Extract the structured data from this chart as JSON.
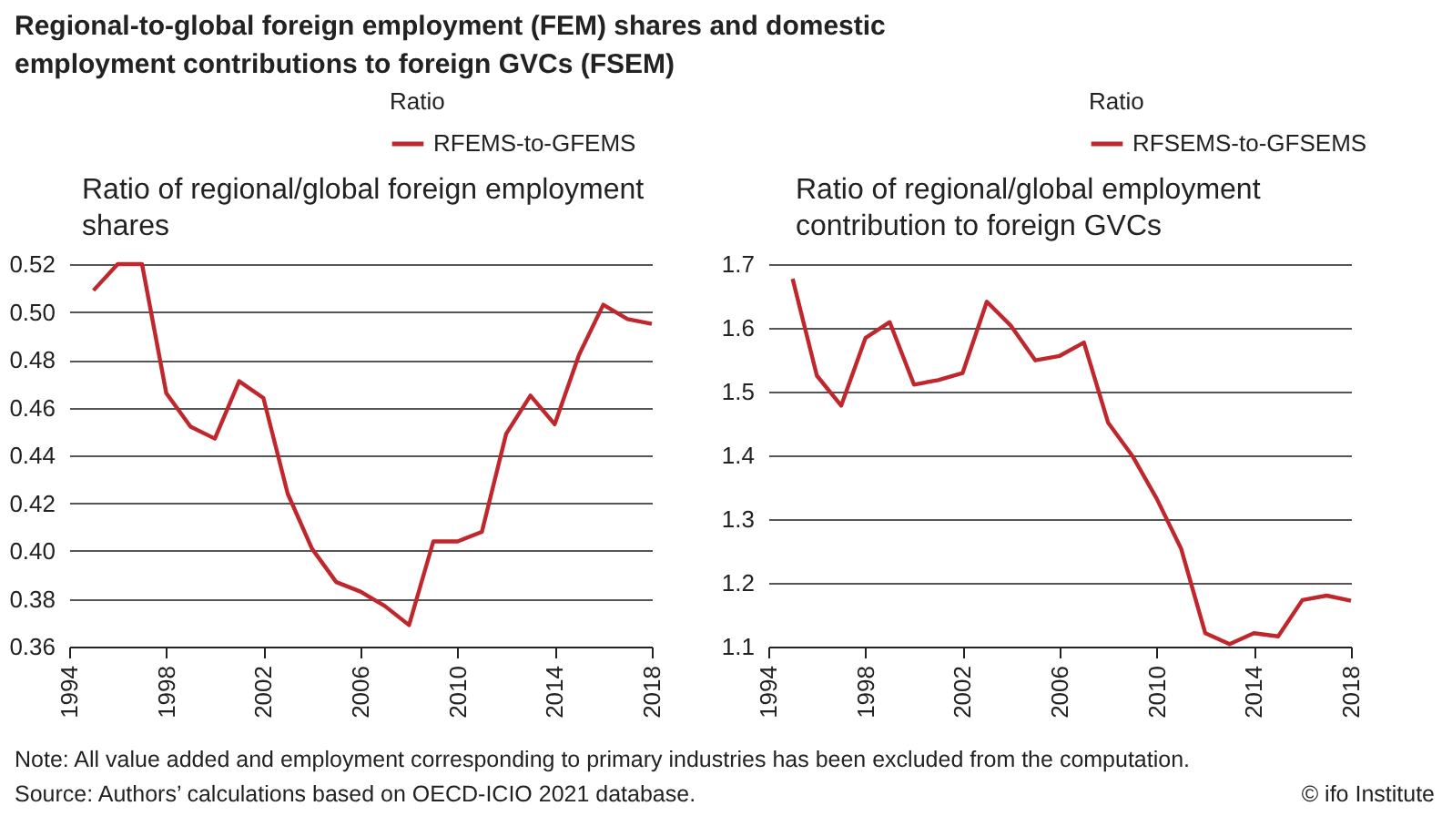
{
  "chart_data": [
    {
      "type": "line",
      "title": "Regional-to-global foreign employment (FEM) shares and domestic employment contributions to foreign GVCs (FSEM)",
      "subtitle": "Ratio of regional/global foreign employment shares",
      "legend_title": "Ratio",
      "legend": "top",
      "grid": "y",
      "line_style": "solid",
      "x": [
        1995,
        1996,
        1997,
        1998,
        1999,
        2000,
        2001,
        2002,
        2003,
        2004,
        2005,
        2006,
        2007,
        2008,
        2009,
        2010,
        2011,
        2012,
        2013,
        2014,
        2015,
        2016,
        2017,
        2018
      ],
      "series": [
        {
          "name": "RFEMS-to-GFEMS",
          "color": "#c0272d",
          "values": [
            0.509,
            0.52,
            0.52,
            0.466,
            0.452,
            0.447,
            0.471,
            0.464,
            0.424,
            0.401,
            0.387,
            0.383,
            0.377,
            0.369,
            0.404,
            0.404,
            0.408,
            0.449,
            0.465,
            0.453,
            0.482,
            0.503,
            0.497,
            0.495
          ]
        }
      ],
      "xlim": [
        1994,
        2018
      ],
      "xticks": [
        1994,
        1998,
        2002,
        2006,
        2010,
        2014,
        2018
      ],
      "ylim": [
        0.36,
        0.52
      ],
      "yticks": [
        {
          "value": 0.36,
          "label": "0.36"
        },
        {
          "value": 0.38,
          "label": "0.38"
        },
        {
          "value": 0.4,
          "label": "0.40"
        },
        {
          "value": 0.42,
          "label": "0.42"
        },
        {
          "value": 0.44,
          "label": "0.44"
        },
        {
          "value": 0.46,
          "label": "0.46"
        },
        {
          "value": 0.48,
          "label": "0.48"
        },
        {
          "value": 0.5,
          "label": "0.50"
        },
        {
          "value": 0.52,
          "label": "0.52"
        }
      ],
      "annotations": [
        "Note: All value added and employment corresponding to primary industries has been excluded from the computation.",
        "Source: Authors’ calculations based on OECD-ICIO 2021 database."
      ]
    },
    {
      "type": "line",
      "subtitle": "Ratio of regional/global employment contribution to foreign GVCs",
      "legend_title": "Ratio",
      "legend": "top",
      "grid": "y",
      "line_style": "solid",
      "x": [
        1995,
        1996,
        1997,
        1998,
        1999,
        2000,
        2001,
        2002,
        2003,
        2004,
        2005,
        2006,
        2007,
        2008,
        2009,
        2010,
        2011,
        2012,
        2013,
        2014,
        2015,
        2016,
        2017,
        2018
      ],
      "series": [
        {
          "name": "RFSEMS-to-GFSEMS",
          "color": "#c0272d",
          "values": [
            1.677,
            1.525,
            1.478,
            1.584,
            1.609,
            1.511,
            1.518,
            1.529,
            1.641,
            1.603,
            1.549,
            1.556,
            1.577,
            1.451,
            1.399,
            1.332,
            1.254,
            1.121,
            1.104,
            1.121,
            1.116,
            1.173,
            1.18,
            1.172
          ]
        }
      ],
      "xlim": [
        1994,
        2018
      ],
      "xticks": [
        1994,
        1998,
        2002,
        2006,
        2010,
        2014,
        2018
      ],
      "ylim": [
        1.1,
        1.7
      ],
      "yticks": [
        1.1,
        1.2,
        1.3,
        1.4,
        1.5,
        1.6,
        1.7
      ],
      "annotations": [
        "© ifo Institute"
      ]
    }
  ]
}
